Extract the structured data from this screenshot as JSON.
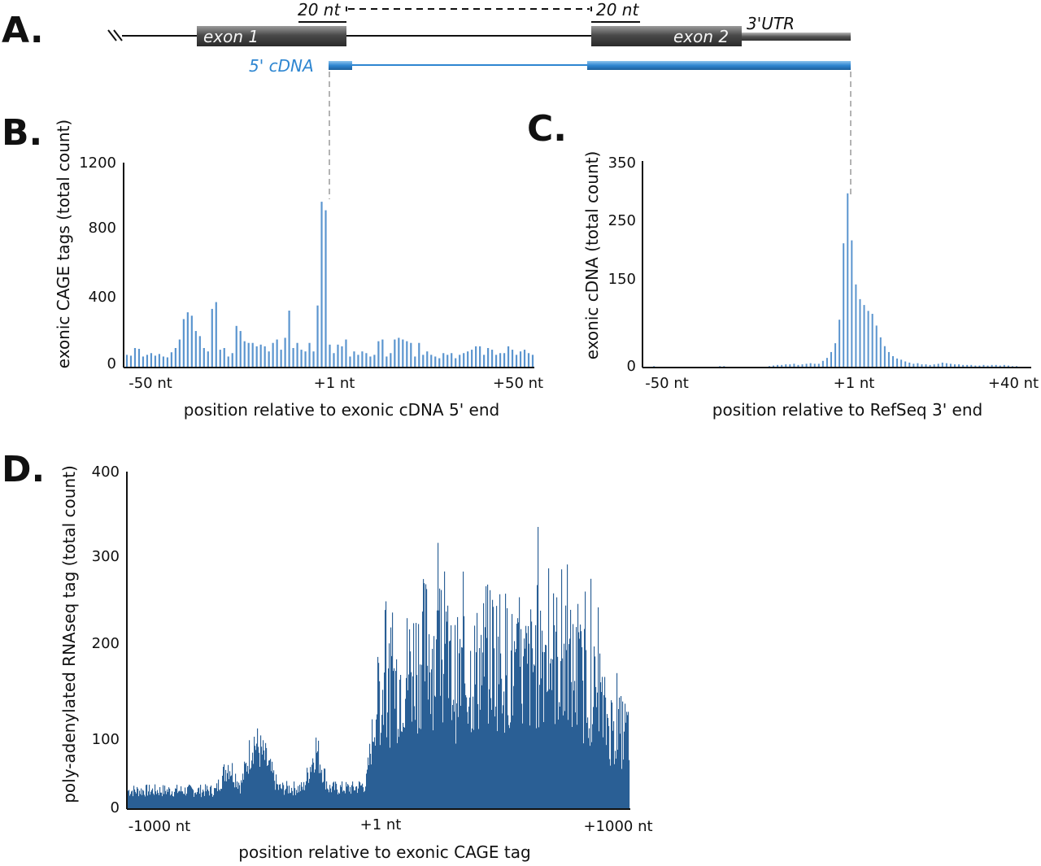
{
  "panel_labels": [
    "A.",
    "B.",
    "C.",
    "D."
  ],
  "schematic": {
    "exon1": "exon 1",
    "exon2": "exon 2",
    "utr": "3'UTR",
    "cdna": "5' cDNA",
    "nt_left": "20 nt",
    "nt_right": "20 nt",
    "colors": {
      "exon": "#4a4a4a",
      "cdna": "#2e86d1",
      "line": "#111111"
    }
  },
  "chart_data": [
    {
      "id": "B",
      "type": "bar",
      "color": "#5b95cf",
      "ylabel": "exonic CAGE tags (total count)",
      "xlabel": "position relative to exonic cDNA 5' end",
      "y_ticks": [
        0,
        400,
        800,
        1200
      ],
      "ylim": [
        0,
        1200
      ],
      "x_ticks": [
        "-50 nt",
        "+1 nt",
        "+50 nt"
      ],
      "x_range": [
        -50,
        50
      ],
      "x": [
        -50,
        -49,
        -48,
        -47,
        -46,
        -45,
        -44,
        -43,
        -42,
        -41,
        -40,
        -39,
        -38,
        -37,
        -36,
        -35,
        -34,
        -33,
        -32,
        -31,
        -30,
        -29,
        -28,
        -27,
        -26,
        -25,
        -24,
        -23,
        -22,
        -21,
        -20,
        -19,
        -18,
        -17,
        -16,
        -15,
        -14,
        -13,
        -12,
        -11,
        -10,
        -9,
        -8,
        -7,
        -6,
        -5,
        -4,
        -3,
        -2,
        -1,
        0,
        1,
        2,
        3,
        4,
        5,
        6,
        7,
        8,
        9,
        10,
        11,
        12,
        13,
        14,
        15,
        16,
        17,
        18,
        19,
        20,
        21,
        22,
        23,
        24,
        25,
        26,
        27,
        28,
        29,
        30,
        31,
        32,
        33,
        34,
        35,
        36,
        37,
        38,
        39,
        40,
        41,
        42,
        43,
        44,
        45,
        46,
        47,
        48,
        49,
        50
      ],
      "values": [
        70,
        65,
        110,
        105,
        60,
        70,
        80,
        65,
        75,
        60,
        55,
        85,
        110,
        160,
        280,
        320,
        300,
        210,
        180,
        110,
        90,
        340,
        380,
        100,
        110,
        60,
        80,
        240,
        210,
        150,
        140,
        140,
        120,
        130,
        120,
        90,
        140,
        160,
        100,
        170,
        330,
        110,
        140,
        100,
        90,
        140,
        90,
        360,
        970,
        920,
        130,
        80,
        130,
        120,
        160,
        60,
        90,
        70,
        90,
        80,
        60,
        70,
        150,
        160,
        60,
        80,
        160,
        170,
        160,
        150,
        140,
        60,
        140,
        70,
        90,
        70,
        60,
        50,
        80,
        70,
        80,
        50,
        70,
        80,
        90,
        100,
        120,
        120,
        70,
        110,
        100,
        70,
        80,
        80,
        120,
        100,
        70,
        90,
        100,
        80,
        70
      ]
    },
    {
      "id": "C",
      "type": "bar",
      "color": "#5b95cf",
      "ylabel": "exonic cDNA (total count)",
      "xlabel": "position relative to RefSeq 3' end",
      "y_ticks": [
        0,
        150,
        250,
        350
      ],
      "ylim": [
        0,
        350
      ],
      "x_ticks": [
        "-50 nt",
        "+1 nt",
        "+40 nt"
      ],
      "x_range": [
        -50,
        40
      ],
      "x": [
        -50,
        -49,
        -48,
        -47,
        -46,
        -45,
        -44,
        -43,
        -42,
        -41,
        -40,
        -39,
        -38,
        -37,
        -36,
        -35,
        -34,
        -33,
        -32,
        -31,
        -30,
        -29,
        -28,
        -27,
        -26,
        -25,
        -24,
        -23,
        -22,
        -21,
        -20,
        -19,
        -18,
        -17,
        -16,
        -15,
        -14,
        -13,
        -12,
        -11,
        -10,
        -9,
        -8,
        -7,
        -6,
        -5,
        -4,
        -3,
        -2,
        -1,
        0,
        1,
        2,
        3,
        4,
        5,
        6,
        7,
        8,
        9,
        10,
        11,
        12,
        13,
        14,
        15,
        16,
        17,
        18,
        19,
        20,
        21,
        22,
        23,
        24,
        25,
        26,
        27,
        28,
        29,
        30,
        31,
        32,
        33,
        34,
        35,
        36,
        37,
        38,
        39,
        40
      ],
      "values": [
        0,
        0,
        1,
        0,
        0,
        0,
        0,
        0,
        0,
        0,
        0,
        0,
        0,
        0,
        0,
        0,
        0,
        0,
        1,
        1,
        0,
        0,
        0,
        0,
        0,
        0,
        0,
        0,
        0,
        0,
        1,
        2,
        3,
        3,
        4,
        4,
        5,
        3,
        4,
        5,
        6,
        5,
        5,
        10,
        15,
        25,
        40,
        80,
        210,
        295,
        215,
        140,
        115,
        105,
        95,
        90,
        70,
        50,
        35,
        25,
        18,
        14,
        12,
        9,
        7,
        5,
        6,
        4,
        4,
        3,
        4,
        5,
        7,
        6,
        5,
        4,
        4,
        3,
        3,
        3,
        2,
        2,
        3,
        2,
        3,
        3,
        2,
        3,
        2,
        1,
        1
      ]
    },
    {
      "id": "D",
      "type": "bar",
      "color": "#2a5f95",
      "ylabel": "poly-adenylated RNAseq tag (total count)",
      "xlabel": "position relative to exonic CAGE tag",
      "y_ticks": [
        0,
        100,
        200,
        300,
        400
      ],
      "ylim": [
        0,
        400
      ],
      "x_ticks": [
        "-1000 nt",
        "+1 nt",
        "+1000 nt"
      ],
      "x_range": [
        -1000,
        1000
      ],
      "x": [
        -1000,
        -950,
        -900,
        -850,
        -800,
        -750,
        -700,
        -650,
        -600,
        -550,
        -500,
        -450,
        -400,
        -350,
        -300,
        -250,
        -200,
        -150,
        -100,
        -50,
        1,
        50,
        100,
        150,
        200,
        250,
        300,
        350,
        400,
        450,
        500,
        550,
        600,
        650,
        700,
        750,
        800,
        850,
        900,
        950,
        1000
      ],
      "values": [
        22,
        22,
        22,
        22,
        22,
        22,
        22,
        22,
        55,
        28,
        85,
        60,
        25,
        25,
        25,
        75,
        25,
        25,
        25,
        30,
        150,
        160,
        175,
        195,
        215,
        185,
        170,
        170,
        185,
        205,
        200,
        170,
        180,
        210,
        200,
        185,
        170,
        160,
        120,
        100,
        100
      ]
    }
  ]
}
